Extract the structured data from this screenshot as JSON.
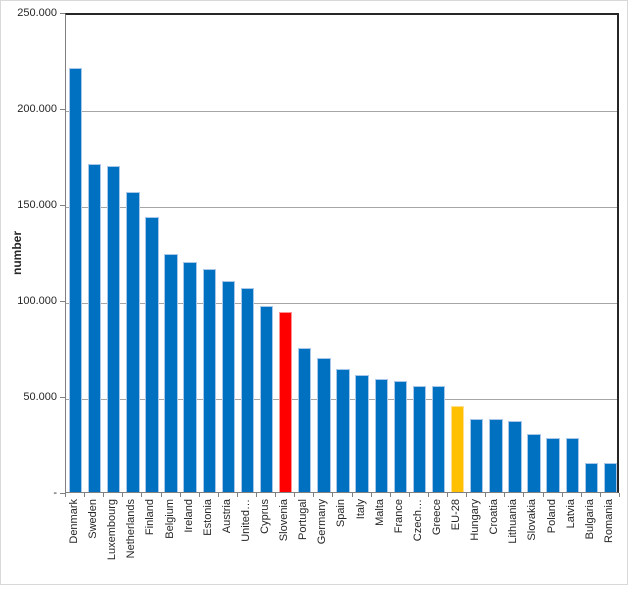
{
  "window": {
    "background": "#FFFFFF",
    "frame_color": "#D9D9D9"
  },
  "chart_data": {
    "type": "bar",
    "title": "",
    "ylabel": "number",
    "xlabel": "",
    "ylim": [
      0,
      250000
    ],
    "grid": true,
    "legend": "none",
    "y_ticks": [
      {
        "value": 250000,
        "label": "250.000"
      },
      {
        "value": 200000,
        "label": "200.000"
      },
      {
        "value": 150000,
        "label": "150.000"
      },
      {
        "value": 100000,
        "label": "100.000"
      },
      {
        "value": 50000,
        "label": "50.000"
      },
      {
        "value": 0,
        "label": "-"
      }
    ],
    "categories": [
      "Denmark",
      "Sweden",
      "Luxembourg",
      "Netherlands",
      "Finland",
      "Belgium",
      "Ireland",
      "Estonia",
      "Austria",
      "United…",
      "Cyprus",
      "Slovenia",
      "Portugal",
      "Germany",
      "Spain",
      "Italy",
      "Malta",
      "France",
      "Czech…",
      "Greece",
      "EU-28",
      "Hungary",
      "Croatia",
      "Lithuania",
      "Slovakia",
      "Poland",
      "Latvia",
      "Bulgaria",
      "Romania"
    ],
    "values": [
      221000,
      171000,
      170000,
      156000,
      143000,
      124000,
      120000,
      116000,
      110000,
      106000,
      97000,
      94000,
      75000,
      70000,
      64000,
      61000,
      59000,
      58000,
      55000,
      55000,
      45000,
      38000,
      38000,
      37000,
      30000,
      28000,
      28000,
      15000,
      15000
    ],
    "color_keys": [
      "blue",
      "blue",
      "blue",
      "blue",
      "blue",
      "blue",
      "blue",
      "blue",
      "blue",
      "blue",
      "blue",
      "red",
      "blue",
      "blue",
      "blue",
      "blue",
      "blue",
      "blue",
      "blue",
      "blue",
      "yellow",
      "blue",
      "blue",
      "blue",
      "blue",
      "blue",
      "blue",
      "blue",
      "blue"
    ],
    "colors": {
      "blue": "#0070C0",
      "red": "#FF0000",
      "yellow": "#FFC000"
    },
    "border_colors": {
      "blue": "#A9C7E9",
      "red": "#FF9191",
      "yellow": "#FFDF8D"
    },
    "highlighted": {
      "red_bar": "Slovenia",
      "yellow_bar": "EU-28"
    }
  }
}
